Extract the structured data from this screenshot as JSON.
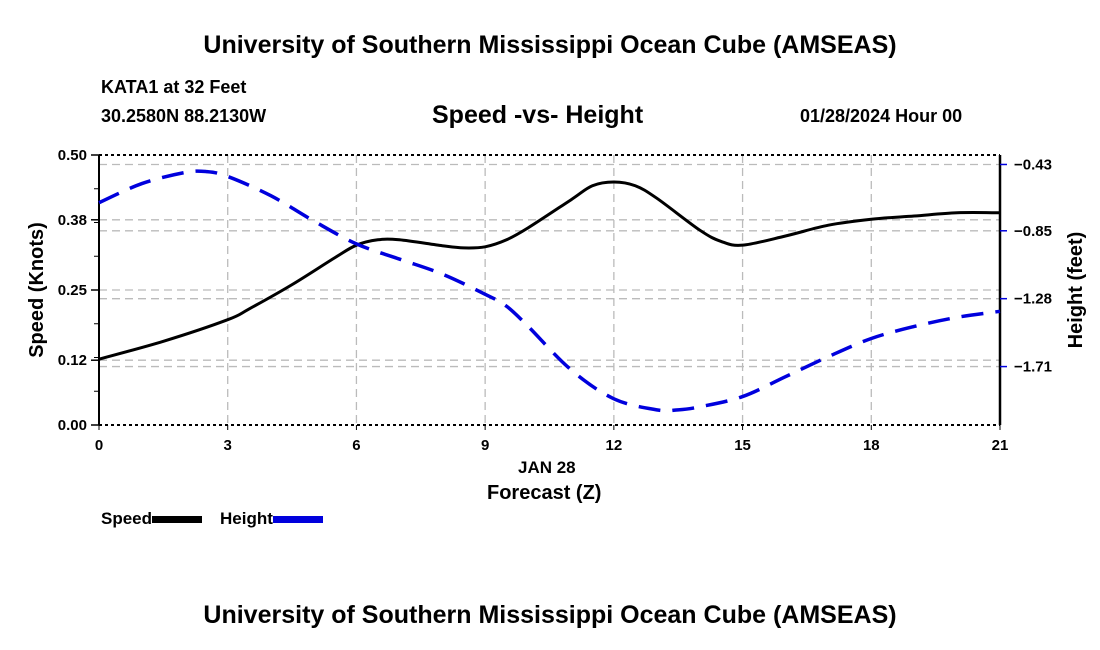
{
  "header": {
    "title": "University of Southern Mississippi Ocean Cube (AMSEAS)",
    "station": "KATA1 at 32 Feet",
    "coords": "30.2580N  88.2130W",
    "subtitle": "Speed -vs- Height",
    "datetime": "01/28/2024 Hour 00"
  },
  "footer": {
    "title": "University of Southern Mississippi Ocean Cube (AMSEAS)"
  },
  "chart_data": {
    "type": "line",
    "title": "Speed -vs- Height",
    "xlabel": "Forecast (Z)",
    "date_label": "JAN 28",
    "ylabel": "Speed (Knots)",
    "y2label": "Height (feet)",
    "xlim": [
      0,
      21
    ],
    "ylim": [
      0,
      0.5
    ],
    "y2lim": [
      -2.08,
      -0.37
    ],
    "x_ticks": [
      "0",
      "3",
      "6",
      "9",
      "12",
      "15",
      "18",
      "21"
    ],
    "y_ticks": [
      "0.00",
      "0.12",
      "0.25",
      "0.38",
      "0.50"
    ],
    "y2_ticks": [
      "-0.43",
      "-0.85",
      "-1.28",
      "-1.71"
    ],
    "grid": true,
    "legend_placement": "bottom-left",
    "series": [
      {
        "name": "Speed",
        "axis": "left",
        "color": "#000000",
        "style": "solid",
        "x": [
          0,
          1.5,
          3,
          3.5,
          4.5,
          5.5,
          6,
          6.5,
          7,
          8,
          8.5,
          9,
          9.5,
          10,
          11,
          11.5,
          12,
          12.5,
          13,
          14,
          14.5,
          15,
          16,
          17,
          18,
          19,
          20,
          21
        ],
        "values": [
          0.122,
          0.155,
          0.195,
          0.215,
          0.26,
          0.31,
          0.333,
          0.343,
          0.343,
          0.332,
          0.328,
          0.33,
          0.343,
          0.365,
          0.417,
          0.443,
          0.45,
          0.443,
          0.42,
          0.361,
          0.34,
          0.333,
          0.35,
          0.37,
          0.381,
          0.387,
          0.393,
          0.393
        ]
      },
      {
        "name": "Height",
        "axis": "right",
        "color": "#0000dd",
        "style": "dashed",
        "x": [
          0,
          1,
          2,
          2.5,
          3,
          4,
          5,
          6,
          7,
          8,
          9,
          9.5,
          10,
          11,
          12,
          13,
          13.5,
          14,
          15,
          16,
          17,
          18,
          19,
          20,
          21
        ],
        "values": [
          -0.672,
          -0.551,
          -0.481,
          -0.475,
          -0.506,
          -0.627,
          -0.787,
          -0.933,
          -1.029,
          -1.124,
          -1.252,
          -1.328,
          -1.455,
          -1.73,
          -1.914,
          -1.984,
          -1.984,
          -1.965,
          -1.9,
          -1.774,
          -1.647,
          -1.532,
          -1.456,
          -1.398,
          -1.36
        ]
      }
    ]
  }
}
